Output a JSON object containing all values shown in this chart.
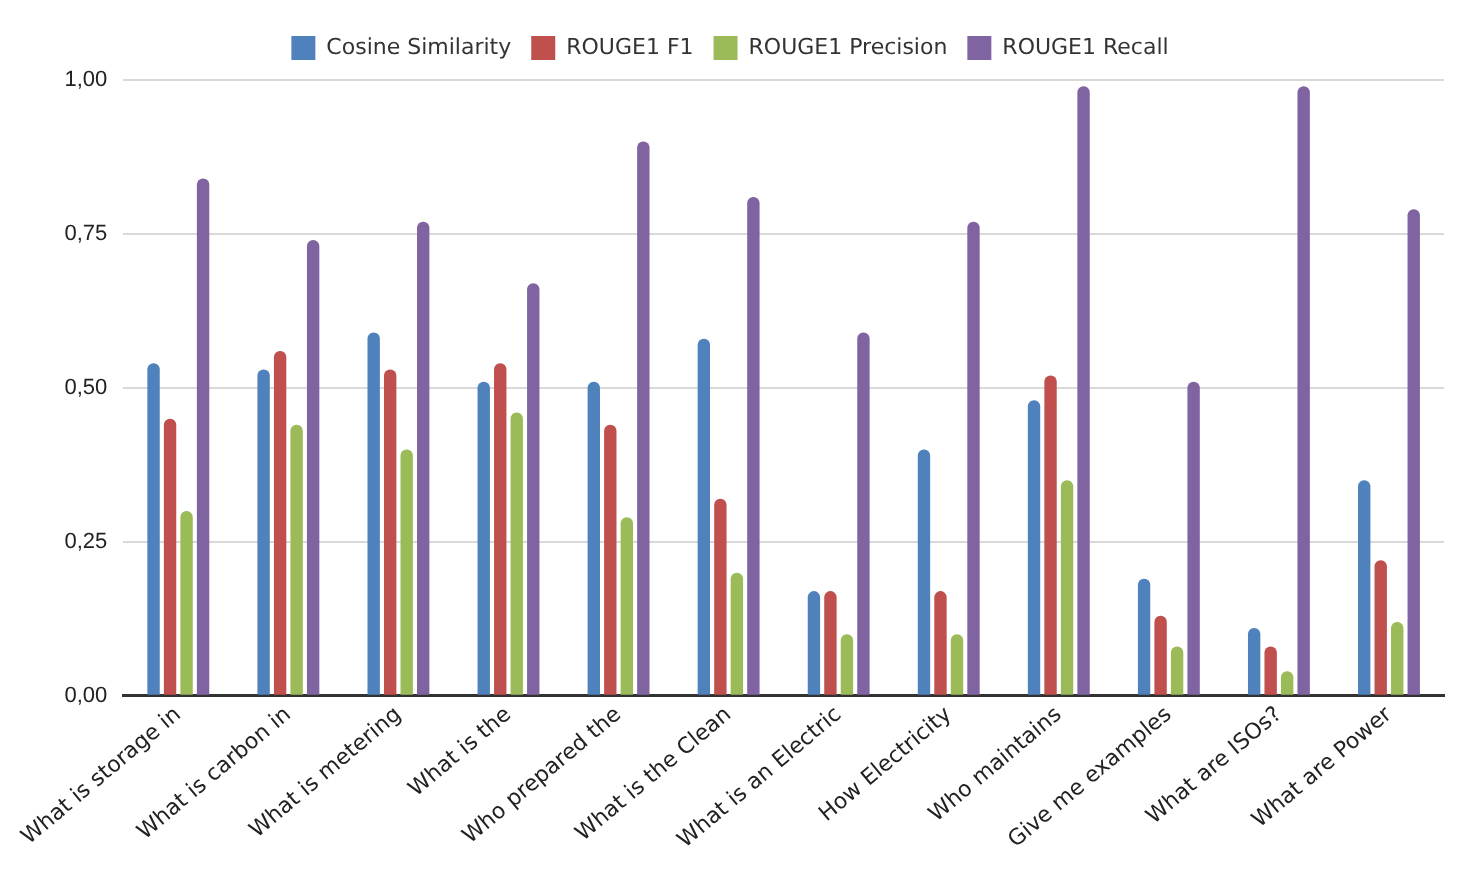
{
  "chart_data": {
    "type": "bar",
    "categories": [
      "What is storage in",
      "What is carbon in",
      "What is metering",
      "What is the",
      "Who prepared the",
      "What is the Clean",
      "What is an Electric",
      "How Electricity",
      "Who maintains",
      "Give me examples",
      "What are ISOs?",
      "What are Power"
    ],
    "series": [
      {
        "name": "Cosine Similarity",
        "color": "#4f81bd",
        "values": [
          0.54,
          0.53,
          0.59,
          0.51,
          0.51,
          0.58,
          0.17,
          0.4,
          0.48,
          0.19,
          0.11,
          0.35
        ]
      },
      {
        "name": "ROUGE1 F1",
        "color": "#c0504d",
        "values": [
          0.45,
          0.56,
          0.53,
          0.54,
          0.44,
          0.32,
          0.17,
          0.17,
          0.52,
          0.13,
          0.08,
          0.22
        ]
      },
      {
        "name": "ROUGE1 Precision",
        "color": "#9bbb59",
        "values": [
          0.3,
          0.44,
          0.4,
          0.46,
          0.29,
          0.2,
          0.1,
          0.1,
          0.35,
          0.08,
          0.04,
          0.12
        ]
      },
      {
        "name": "ROUGE1 Recall",
        "color": "#8064a2",
        "values": [
          0.84,
          0.74,
          0.77,
          0.67,
          0.9,
          0.81,
          0.59,
          0.77,
          0.99,
          0.51,
          0.99,
          0.79
        ]
      }
    ],
    "ylim": [
      0,
      1
    ],
    "yticks": [
      {
        "value": 0,
        "label": "0,00"
      },
      {
        "value": 0.25,
        "label": "0,25"
      },
      {
        "value": 0.5,
        "label": "0,50"
      },
      {
        "value": 0.75,
        "label": "0,75"
      },
      {
        "value": 1,
        "label": "1,00"
      }
    ],
    "grid": "y",
    "legend": "top"
  }
}
